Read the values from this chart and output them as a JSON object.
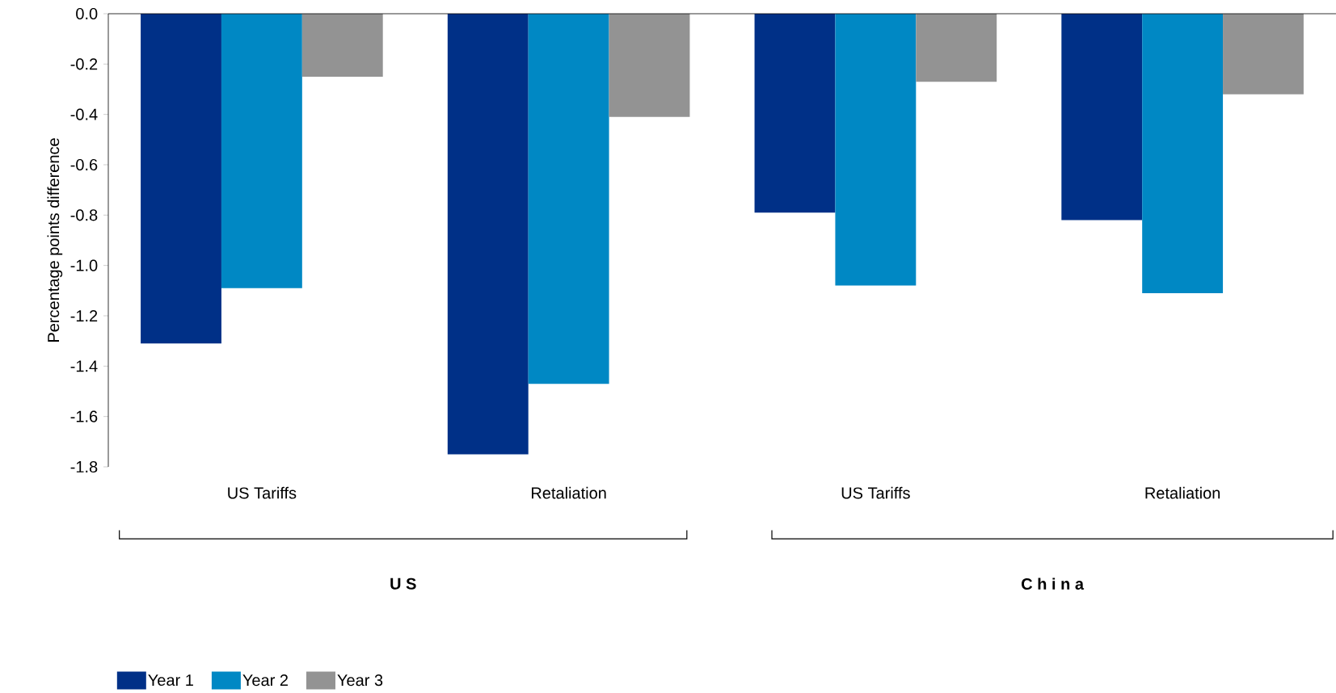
{
  "chart_data": {
    "type": "bar",
    "ylabel": "Percentage points difference",
    "categories": [
      "US Tariffs",
      "Retaliation",
      "US Tariffs",
      "Retaliation"
    ],
    "series": [
      {
        "name": "Year 1",
        "color": "#003087",
        "values": [
          -1.31,
          -1.75,
          -0.79,
          -0.82
        ]
      },
      {
        "name": "Year 2",
        "color": "#0088c4",
        "values": [
          -1.09,
          -1.47,
          -1.08,
          -1.11
        ]
      },
      {
        "name": "Year 3",
        "color": "#939393",
        "values": [
          -0.25,
          -0.41,
          -0.27,
          -0.32
        ]
      }
    ],
    "ylim": [
      -1.8,
      0
    ],
    "yticks": [
      {
        "value": 0,
        "label": "0.0"
      },
      {
        "value": -0.2,
        "label": "-0.2"
      },
      {
        "value": -0.4,
        "label": "-0.4"
      },
      {
        "value": -0.6,
        "label": "-0.6"
      },
      {
        "value": -0.8,
        "label": "-0.8"
      },
      {
        "value": -1.0,
        "label": "-1.0"
      },
      {
        "value": -1.2,
        "label": "-1.2"
      },
      {
        "value": -1.4,
        "label": "-1.4"
      },
      {
        "value": -1.6,
        "label": "-1.6"
      },
      {
        "value": -1.8,
        "label": "-1.8"
      }
    ],
    "annotations": [
      "U S",
      "C h i n a"
    ],
    "legend": "bottom left",
    "grid": false
  }
}
